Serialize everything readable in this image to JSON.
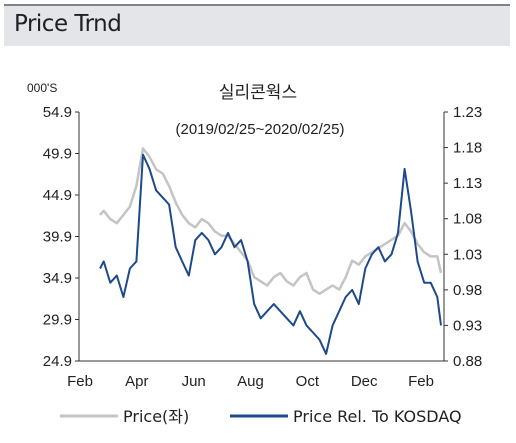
{
  "header": {
    "title": "Price Trnd"
  },
  "chart_data": {
    "type": "line",
    "title": "실리콘웍스",
    "subtitle": "(2019/02/25~2020/02/25)",
    "left_unit": "000'S",
    "x_ticks": [
      "Feb",
      "Apr",
      "Jun",
      "Aug",
      "Oct",
      "Dec",
      "Feb"
    ],
    "y_left": {
      "min": 24.9,
      "max": 54.9,
      "ticks": [
        "54.9",
        "49.9",
        "44.9",
        "39.9",
        "34.9",
        "29.9",
        "24.9"
      ]
    },
    "y_right": {
      "min": 0.88,
      "max": 1.23,
      "ticks": [
        "1.23",
        "1.18",
        "1.13",
        "1.08",
        "1.03",
        "0.98",
        "0.93",
        "0.88"
      ]
    },
    "grid": false,
    "legend": {
      "position": "bottom"
    },
    "series": [
      {
        "name": "Price(좌)",
        "axis": "left",
        "color": "#c4c4c4",
        "x": [
          "2019-02-25",
          "2019-03-01",
          "2019-03-08",
          "2019-03-15",
          "2019-03-22",
          "2019-03-29",
          "2019-04-05",
          "2019-04-12",
          "2019-04-19",
          "2019-04-26",
          "2019-05-03",
          "2019-05-10",
          "2019-05-17",
          "2019-05-24",
          "2019-05-31",
          "2019-06-07",
          "2019-06-14",
          "2019-06-21",
          "2019-06-28",
          "2019-07-05",
          "2019-07-12",
          "2019-07-19",
          "2019-07-26",
          "2019-08-02",
          "2019-08-09",
          "2019-08-16",
          "2019-08-23",
          "2019-08-30",
          "2019-09-06",
          "2019-09-13",
          "2019-09-20",
          "2019-09-27",
          "2019-10-04",
          "2019-10-11",
          "2019-10-18",
          "2019-10-25",
          "2019-11-01",
          "2019-11-08",
          "2019-11-15",
          "2019-11-22",
          "2019-11-29",
          "2019-12-06",
          "2019-12-13",
          "2019-12-20",
          "2019-12-27",
          "2020-01-03",
          "2020-01-10",
          "2020-01-17",
          "2020-01-24",
          "2020-01-31",
          "2020-02-07",
          "2020-02-14",
          "2020-02-21",
          "2020-02-25"
        ],
        "values": [
          42.5,
          43.0,
          42.0,
          41.5,
          42.5,
          43.5,
          46.0,
          50.5,
          49.5,
          48.0,
          47.5,
          46.0,
          44.0,
          42.5,
          41.5,
          41.0,
          42.0,
          41.5,
          40.5,
          40.0,
          40.0,
          39.0,
          38.0,
          37.0,
          35.0,
          34.5,
          34.0,
          35.0,
          35.5,
          34.5,
          34.0,
          35.0,
          35.5,
          33.5,
          33.0,
          33.5,
          34.0,
          33.5,
          35.0,
          37.0,
          36.5,
          37.5,
          38.0,
          38.5,
          39.0,
          39.5,
          40.0,
          41.5,
          40.5,
          39.0,
          38.0,
          37.5,
          37.5,
          35.5
        ]
      },
      {
        "name": "Price Rel. To KOSDAQ",
        "axis": "right",
        "color": "#1d4a8a",
        "x": [
          "2019-02-25",
          "2019-03-01",
          "2019-03-08",
          "2019-03-15",
          "2019-03-22",
          "2019-03-29",
          "2019-04-05",
          "2019-04-12",
          "2019-04-19",
          "2019-04-26",
          "2019-05-03",
          "2019-05-10",
          "2019-05-17",
          "2019-05-24",
          "2019-05-31",
          "2019-06-07",
          "2019-06-14",
          "2019-06-21",
          "2019-06-28",
          "2019-07-05",
          "2019-07-12",
          "2019-07-19",
          "2019-07-26",
          "2019-08-02",
          "2019-08-09",
          "2019-08-16",
          "2019-08-23",
          "2019-08-30",
          "2019-09-06",
          "2019-09-13",
          "2019-09-20",
          "2019-09-27",
          "2019-10-04",
          "2019-10-11",
          "2019-10-18",
          "2019-10-25",
          "2019-11-01",
          "2019-11-08",
          "2019-11-15",
          "2019-11-22",
          "2019-11-29",
          "2019-12-06",
          "2019-12-13",
          "2019-12-20",
          "2019-12-27",
          "2020-01-03",
          "2020-01-10",
          "2020-01-17",
          "2020-01-24",
          "2020-01-31",
          "2020-02-07",
          "2020-02-14",
          "2020-02-21",
          "2020-02-25"
        ],
        "values": [
          1.01,
          1.02,
          0.99,
          1.0,
          0.97,
          1.01,
          1.02,
          1.17,
          1.15,
          1.12,
          1.11,
          1.1,
          1.04,
          1.02,
          1.0,
          1.05,
          1.06,
          1.05,
          1.03,
          1.04,
          1.06,
          1.04,
          1.05,
          1.02,
          0.96,
          0.94,
          0.95,
          0.96,
          0.95,
          0.94,
          0.93,
          0.95,
          0.93,
          0.92,
          0.91,
          0.89,
          0.93,
          0.95,
          0.97,
          0.98,
          0.96,
          1.01,
          1.03,
          1.04,
          1.02,
          1.03,
          1.06,
          1.15,
          1.09,
          1.02,
          0.99,
          0.99,
          0.97,
          0.93
        ]
      }
    ]
  }
}
